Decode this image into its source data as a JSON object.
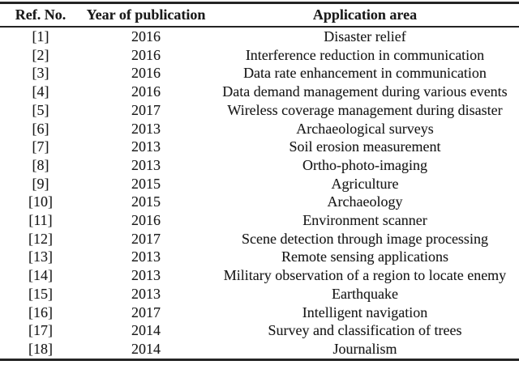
{
  "colors": {
    "text": "#1a1a1a",
    "rule": "#242424",
    "background": "#ffffff"
  },
  "table": {
    "headers": {
      "ref": "Ref. No.",
      "year": "Year of publication",
      "area": "Application area"
    },
    "rows": [
      {
        "ref": "[1]",
        "year": "2016",
        "area": "Disaster relief"
      },
      {
        "ref": "[2]",
        "year": "2016",
        "area": "Interference reduction in communication"
      },
      {
        "ref": "[3]",
        "year": "2016",
        "area": "Data rate enhancement in communication"
      },
      {
        "ref": "[4]",
        "year": "2016",
        "area": "Data demand management during various events"
      },
      {
        "ref": "[5]",
        "year": "2017",
        "area": "Wireless coverage management during disaster"
      },
      {
        "ref": "[6]",
        "year": "2013",
        "area": "Archaeological surveys"
      },
      {
        "ref": "[7]",
        "year": "2013",
        "area": "Soil erosion measurement"
      },
      {
        "ref": "[8]",
        "year": "2013",
        "area": "Ortho-photo-imaging"
      },
      {
        "ref": "[9]",
        "year": "2015",
        "area": "Agriculture"
      },
      {
        "ref": "[10]",
        "year": "2015",
        "area": "Archaeology"
      },
      {
        "ref": "[11]",
        "year": "2016",
        "area": "Environment scanner"
      },
      {
        "ref": "[12]",
        "year": "2017",
        "area": "Scene detection through image processing"
      },
      {
        "ref": "[13]",
        "year": "2013",
        "area": "Remote sensing applications"
      },
      {
        "ref": "[14]",
        "year": "2013",
        "area": "Military observation of a region to locate enemy"
      },
      {
        "ref": "[15]",
        "year": "2013",
        "area": "Earthquake"
      },
      {
        "ref": "[16]",
        "year": "2017",
        "area": "Intelligent navigation"
      },
      {
        "ref": "[17]",
        "year": "2014",
        "area": "Survey and classification of trees"
      },
      {
        "ref": "[18]",
        "year": "2014",
        "area": "Journalism"
      }
    ]
  }
}
